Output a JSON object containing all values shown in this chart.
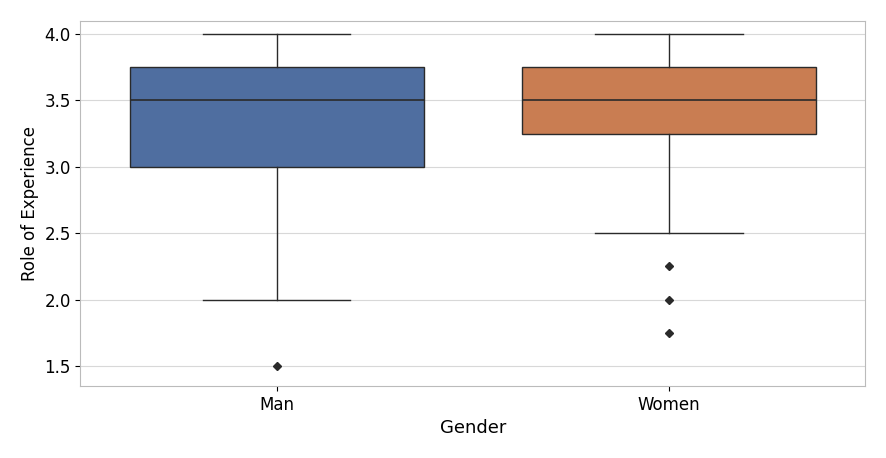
{
  "title": "",
  "xlabel": "Gender",
  "ylabel": "Role of Experience",
  "categories": [
    "Man",
    "Women"
  ],
  "box_data": {
    "Man": {
      "q1": 3.0,
      "median": 3.5,
      "q3": 3.75,
      "whisker_low": 2.0,
      "whisker_high": 4.0,
      "fliers": [
        1.5
      ]
    },
    "Women": {
      "q1": 3.25,
      "median": 3.5,
      "q3": 3.75,
      "whisker_low": 2.5,
      "whisker_high": 4.0,
      "fliers": [
        2.25,
        2.0,
        1.75
      ]
    }
  },
  "box_colors": [
    "#4f6ea0",
    "#c97d52"
  ],
  "box_edge_color": "#2a2a2a",
  "median_color": "#2a2a2a",
  "whisker_color": "#2a2a2a",
  "cap_color": "#2a2a2a",
  "flier_color": "#2a2a2a",
  "background_color": "#ffffff",
  "grid_color": "#d8d8d8",
  "ylim": [
    1.35,
    4.1
  ],
  "yticks": [
    1.5,
    2.0,
    2.5,
    3.0,
    3.5,
    4.0
  ],
  "box_width": 0.75,
  "positions": [
    1,
    2
  ],
  "xlim": [
    0.5,
    2.5
  ],
  "xlabel_fontsize": 13,
  "ylabel_fontsize": 12,
  "tick_fontsize": 12
}
